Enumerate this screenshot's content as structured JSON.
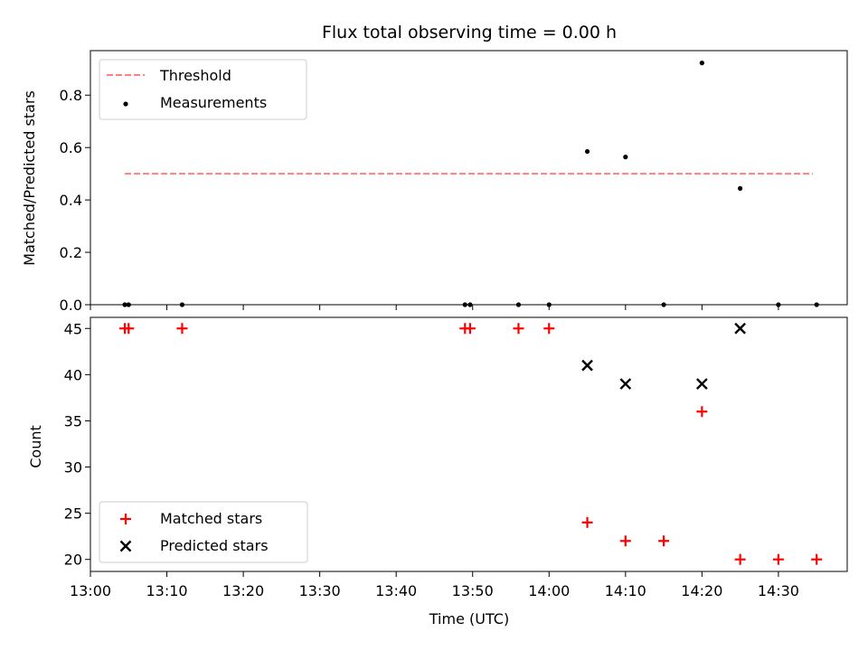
{
  "chart_data": [
    {
      "type": "scatter",
      "title": "Flux total observing time = 0.00 h",
      "xlabel": "",
      "ylabel": "Matched/Predicted stars",
      "ylim": [
        0,
        0.97
      ],
      "yticks": [
        "0.0",
        "0.2",
        "0.4",
        "0.6",
        "0.8"
      ],
      "legend_position": "top-left",
      "threshold": {
        "name": "Threshold",
        "value": 0.5,
        "x_start": "13:04:30",
        "x_end": "14:34:30",
        "color": "#ff7f7f",
        "style": "dashed"
      },
      "series": [
        {
          "name": "Measurements",
          "color": "#000000",
          "x": [
            "13:04:30",
            "13:05:00",
            "13:12:00",
            "13:49:00",
            "13:49:40",
            "13:56:00",
            "14:00:00",
            "14:05:00",
            "14:10:00",
            "14:15:00",
            "14:20:00",
            "14:25:00",
            "14:30:00",
            "14:35:00"
          ],
          "y": [
            0,
            0,
            0,
            0,
            0,
            0,
            0,
            0.585,
            0.564,
            0,
            0.923,
            0.444,
            0,
            0
          ]
        }
      ]
    },
    {
      "type": "scatter",
      "title": "",
      "xlabel": "Time (UTC)",
      "ylabel": "Count",
      "ylim": [
        18.7,
        46.2
      ],
      "yticks": [
        "20",
        "25",
        "30",
        "35",
        "40",
        "45"
      ],
      "xlim": [
        "13:00:00",
        "14:39:00"
      ],
      "xticks": [
        "13:00",
        "13:10",
        "13:20",
        "13:30",
        "13:40",
        "13:50",
        "14:00",
        "14:10",
        "14:20",
        "14:30"
      ],
      "legend_position": "bottom-left",
      "series": [
        {
          "name": "Matched stars",
          "marker": "plus",
          "color": "#ff0000",
          "x": [
            "13:04:30",
            "13:05:00",
            "13:12:00",
            "13:49:00",
            "13:49:40",
            "13:56:00",
            "14:00:00",
            "14:05:00",
            "14:10:00",
            "14:15:00",
            "14:20:00",
            "14:25:00",
            "14:30:00",
            "14:35:00"
          ],
          "y": [
            45,
            45,
            45,
            45,
            45,
            45,
            45,
            24,
            22,
            22,
            36,
            20,
            20,
            20
          ]
        },
        {
          "name": "Predicted stars",
          "marker": "x",
          "color": "#000000",
          "x": [
            "14:05:00",
            "14:10:00",
            "14:20:00",
            "14:25:00"
          ],
          "y": [
            41,
            39,
            39,
            45
          ]
        }
      ]
    }
  ]
}
